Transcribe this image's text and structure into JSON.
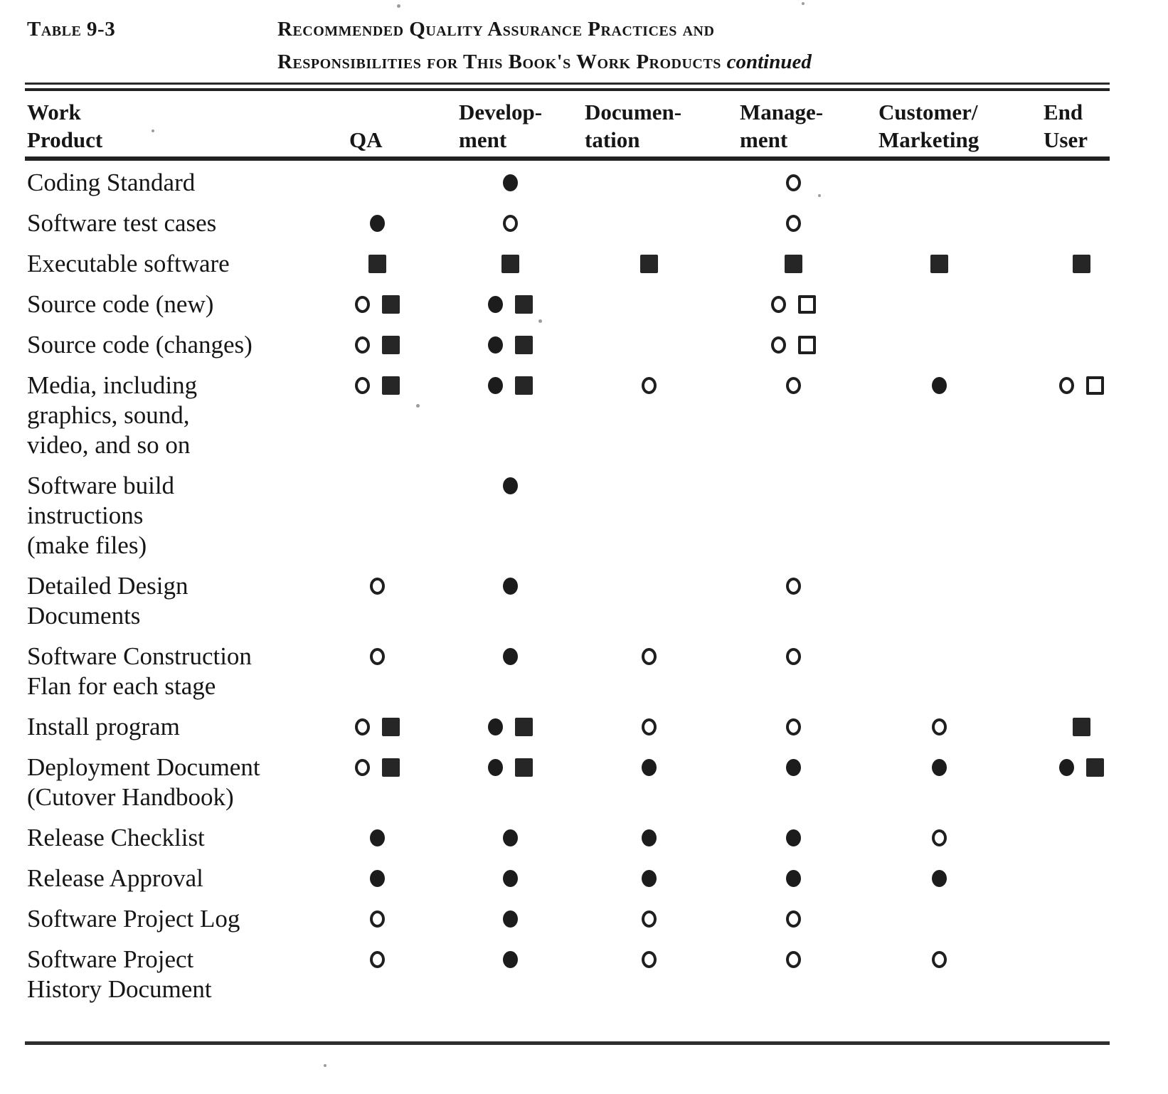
{
  "page": {
    "table_label": "Table 9-3",
    "title_line1": "Recommended Quality Assurance Practices and",
    "title_line2": "Responsibilities for This Book's Work Products",
    "title_continued": "continued"
  },
  "table": {
    "columns": [
      {
        "id": "work_product",
        "label": "Work\nProduct"
      },
      {
        "id": "qa",
        "label": "\nQA"
      },
      {
        "id": "development",
        "label": "Develop-\nment"
      },
      {
        "id": "documentation",
        "label": "Documen-\ntation"
      },
      {
        "id": "management",
        "label": "Manage-\nment"
      },
      {
        "id": "customer_marketing",
        "label": "Customer/\nMarketing"
      },
      {
        "id": "end_user",
        "label": "End\nUser"
      }
    ],
    "symbol_glyphs": {
      "filled-circle": "●",
      "open-circle": "○",
      "filled-square": "■",
      "open-square": "□"
    },
    "rows": [
      {
        "work_product": "Coding Standard",
        "qa": [],
        "development": [
          "filled-circle"
        ],
        "documentation": [],
        "management": [
          "open-circle"
        ],
        "customer_marketing": [],
        "end_user": []
      },
      {
        "work_product": "Software test cases",
        "qa": [
          "filled-circle"
        ],
        "development": [
          "open-circle"
        ],
        "documentation": [],
        "management": [
          "open-circle"
        ],
        "customer_marketing": [],
        "end_user": []
      },
      {
        "work_product": "Executable software",
        "qa": [
          "filled-square"
        ],
        "development": [
          "filled-square"
        ],
        "documentation": [
          "filled-square"
        ],
        "management": [
          "filled-square"
        ],
        "customer_marketing": [
          "filled-square"
        ],
        "end_user": [
          "filled-square"
        ]
      },
      {
        "work_product": "Source code (new)",
        "qa": [
          "open-circle",
          "filled-square"
        ],
        "development": [
          "filled-circle",
          "filled-square"
        ],
        "documentation": [],
        "management": [
          "open-circle",
          "open-square"
        ],
        "customer_marketing": [],
        "end_user": []
      },
      {
        "work_product": "Source code (changes)",
        "qa": [
          "open-circle",
          "filled-square"
        ],
        "development": [
          "filled-circle",
          "filled-square"
        ],
        "documentation": [],
        "management": [
          "open-circle",
          "open-square"
        ],
        "customer_marketing": [],
        "end_user": []
      },
      {
        "work_product": "Media, including\ngraphics, sound,\nvideo, and so on",
        "qa": [
          "open-circle",
          "filled-square"
        ],
        "development": [
          "filled-circle",
          "filled-square"
        ],
        "documentation": [
          "open-circle"
        ],
        "management": [
          "open-circle"
        ],
        "customer_marketing": [
          "filled-circle"
        ],
        "end_user": [
          "open-circle",
          "open-square"
        ]
      },
      {
        "work_product": "Software build\ninstructions\n(make files)",
        "qa": [],
        "development": [
          "filled-circle"
        ],
        "documentation": [],
        "management": [],
        "customer_marketing": [],
        "end_user": []
      },
      {
        "work_product": "Detailed Design\nDocuments",
        "qa": [
          "open-circle"
        ],
        "development": [
          "filled-circle"
        ],
        "documentation": [],
        "management": [
          "open-circle"
        ],
        "customer_marketing": [],
        "end_user": []
      },
      {
        "work_product": "Software Construction\nFlan for each stage",
        "qa": [
          "open-circle"
        ],
        "development": [
          "filled-circle"
        ],
        "documentation": [
          "open-circle"
        ],
        "management": [
          "open-circle"
        ],
        "customer_marketing": [],
        "end_user": []
      },
      {
        "work_product": "Install program",
        "qa": [
          "open-circle",
          "filled-square"
        ],
        "development": [
          "filled-circle",
          "filled-square"
        ],
        "documentation": [
          "open-circle"
        ],
        "management": [
          "open-circle"
        ],
        "customer_marketing": [
          "open-circle"
        ],
        "end_user": [
          "filled-square"
        ]
      },
      {
        "work_product": "Deployment Document\n(Cutover Handbook)",
        "qa": [
          "open-circle",
          "filled-square"
        ],
        "development": [
          "filled-circle",
          "filled-square"
        ],
        "documentation": [
          "filled-circle"
        ],
        "management": [
          "filled-circle"
        ],
        "customer_marketing": [
          "filled-circle"
        ],
        "end_user": [
          "filled-circle",
          "filled-square"
        ]
      },
      {
        "work_product": "Release Checklist",
        "qa": [
          "filled-circle"
        ],
        "development": [
          "filled-circle"
        ],
        "documentation": [
          "filled-circle"
        ],
        "management": [
          "filled-circle"
        ],
        "customer_marketing": [
          "open-circle"
        ],
        "end_user": []
      },
      {
        "work_product": "Release Approval",
        "qa": [
          "filled-circle"
        ],
        "development": [
          "filled-circle"
        ],
        "documentation": [
          "filled-circle"
        ],
        "management": [
          "filled-circle"
        ],
        "customer_marketing": [
          "filled-circle"
        ],
        "end_user": []
      },
      {
        "work_product": "Software Project Log",
        "qa": [
          "open-circle"
        ],
        "development": [
          "filled-circle"
        ],
        "documentation": [
          "open-circle"
        ],
        "management": [
          "open-circle"
        ],
        "customer_marketing": [],
        "end_user": []
      },
      {
        "work_product": "Software Project\nHistory Document",
        "qa": [
          "open-circle"
        ],
        "development": [
          "filled-circle"
        ],
        "documentation": [
          "open-circle"
        ],
        "management": [
          "open-circle"
        ],
        "customer_marketing": [
          "open-circle"
        ],
        "end_user": []
      }
    ]
  }
}
